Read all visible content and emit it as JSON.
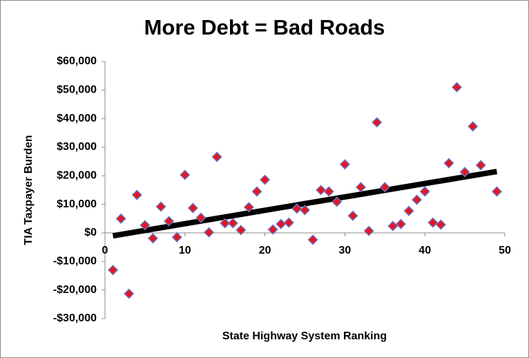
{
  "chart_data": {
    "type": "scatter",
    "title": "More Debt = Bad Roads",
    "x_label": "State Highway System Ranking",
    "y_label": "TIA Taxpayer Burden",
    "xlim": [
      0,
      50
    ],
    "xticks": [
      0,
      10,
      20,
      30,
      40,
      50
    ],
    "ylim": [
      -30000,
      60000
    ],
    "yticks": [
      {
        "value": -30000,
        "label": "-$30,000"
      },
      {
        "value": -20000,
        "label": "-$20,000"
      },
      {
        "value": -10000,
        "label": "-$10,000"
      },
      {
        "value": 0,
        "label": "$0"
      },
      {
        "value": 10000,
        "label": "$10,000"
      },
      {
        "value": 20000,
        "label": "$20,000"
      },
      {
        "value": 30000,
        "label": "$30,000"
      },
      {
        "value": 40000,
        "label": "$40,000"
      },
      {
        "value": 50000,
        "label": "$50,000"
      },
      {
        "value": 60000,
        "label": "$60,000"
      }
    ],
    "grid": false,
    "x": [
      1,
      2,
      3,
      4,
      5,
      6,
      7,
      8,
      9,
      10,
      11,
      12,
      13,
      14,
      15,
      16,
      17,
      18,
      19,
      20,
      21,
      22,
      23,
      24,
      25,
      26,
      27,
      28,
      29,
      30,
      31,
      32,
      33,
      34,
      35,
      36,
      37,
      38,
      39,
      40,
      41,
      42,
      43,
      44,
      45,
      46,
      47,
      49
    ],
    "series": [
      {
        "color": "#e8141c",
        "stroke": "#6a73c9",
        "values": [
          -13000,
          5000,
          -21300,
          13300,
          2700,
          -1900,
          9200,
          4100,
          -1500,
          20300,
          8700,
          5300,
          200,
          26600,
          3400,
          3400,
          1000,
          9000,
          14500,
          18600,
          1200,
          3100,
          3600,
          8500,
          8000,
          -2400,
          15000,
          14500,
          10900,
          24000,
          6000,
          16000,
          700,
          38700,
          16000,
          2400,
          3100,
          7700,
          11600,
          14500,
          3600,
          2900,
          24400,
          51000,
          21300,
          37300,
          23700,
          14500
        ]
      }
    ],
    "trendline": {
      "color": "#000000",
      "x": [
        1,
        49
      ],
      "values": [
        -1000,
        21500
      ]
    }
  }
}
